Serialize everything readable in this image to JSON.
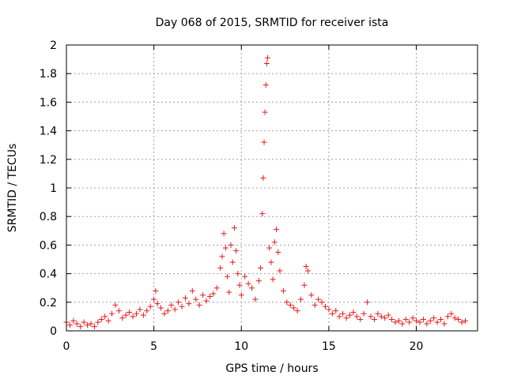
{
  "colors": {
    "series": "#e41a1c",
    "grid": "#a0a0a0",
    "axis": "#000000"
  },
  "chart_data": {
    "type": "scatter",
    "title": "Day 068 of 2015, SRMTID for receiver ista",
    "xlabel": "GPS time / hours",
    "ylabel": "SRMTID / TECUs",
    "xlim": [
      0,
      23.5
    ],
    "ylim": [
      0,
      2
    ],
    "grid": true,
    "marker": "+",
    "x_ticks": [
      0,
      5,
      10,
      15,
      20
    ],
    "x_tick_labels": [
      "0",
      "5",
      "10",
      "15",
      "20"
    ],
    "y_ticks": [
      0,
      0.2,
      0.4,
      0.6,
      0.8,
      1,
      1.2,
      1.4,
      1.6,
      1.8,
      2
    ],
    "y_tick_labels": [
      "0",
      "0.2",
      "0.4",
      "0.6",
      "0.8",
      "1",
      "1.2",
      "1.4",
      "1.6",
      "1.8",
      "2"
    ],
    "series": [
      {
        "name": "SRMTID",
        "points": [
          [
            0.0,
            0.06
          ],
          [
            0.2,
            0.04
          ],
          [
            0.4,
            0.07
          ],
          [
            0.6,
            0.05
          ],
          [
            0.8,
            0.03
          ],
          [
            1.0,
            0.06
          ],
          [
            1.2,
            0.04
          ],
          [
            1.4,
            0.05
          ],
          [
            1.6,
            0.03
          ],
          [
            1.8,
            0.06
          ],
          [
            2.0,
            0.08
          ],
          [
            2.2,
            0.1
          ],
          [
            2.4,
            0.07
          ],
          [
            2.6,
            0.12
          ],
          [
            2.8,
            0.18
          ],
          [
            3.0,
            0.14
          ],
          [
            3.2,
            0.09
          ],
          [
            3.4,
            0.11
          ],
          [
            3.6,
            0.13
          ],
          [
            3.8,
            0.1
          ],
          [
            4.0,
            0.12
          ],
          [
            4.2,
            0.15
          ],
          [
            4.4,
            0.11
          ],
          [
            4.6,
            0.14
          ],
          [
            4.8,
            0.17
          ],
          [
            5.0,
            0.22
          ],
          [
            5.1,
            0.28
          ],
          [
            5.2,
            0.19
          ],
          [
            5.4,
            0.16
          ],
          [
            5.6,
            0.12
          ],
          [
            5.8,
            0.14
          ],
          [
            6.0,
            0.18
          ],
          [
            6.2,
            0.15
          ],
          [
            6.4,
            0.2
          ],
          [
            6.6,
            0.17
          ],
          [
            6.8,
            0.23
          ],
          [
            7.0,
            0.19
          ],
          [
            7.2,
            0.28
          ],
          [
            7.4,
            0.22
          ],
          [
            7.6,
            0.18
          ],
          [
            7.8,
            0.25
          ],
          [
            8.0,
            0.21
          ],
          [
            8.2,
            0.24
          ],
          [
            8.4,
            0.26
          ],
          [
            8.6,
            0.3
          ],
          [
            8.8,
            0.44
          ],
          [
            8.9,
            0.52
          ],
          [
            9.0,
            0.68
          ],
          [
            9.1,
            0.58
          ],
          [
            9.2,
            0.38
          ],
          [
            9.3,
            0.27
          ],
          [
            9.4,
            0.6
          ],
          [
            9.5,
            0.48
          ],
          [
            9.6,
            0.72
          ],
          [
            9.7,
            0.56
          ],
          [
            9.8,
            0.4
          ],
          [
            9.9,
            0.32
          ],
          [
            10.0,
            0.25
          ],
          [
            10.2,
            0.38
          ],
          [
            10.4,
            0.33
          ],
          [
            10.6,
            0.3
          ],
          [
            10.8,
            0.22
          ],
          [
            11.0,
            0.35
          ],
          [
            11.1,
            0.44
          ],
          [
            11.2,
            0.82
          ],
          [
            11.25,
            1.07
          ],
          [
            11.3,
            1.32
          ],
          [
            11.35,
            1.53
          ],
          [
            11.4,
            1.72
          ],
          [
            11.45,
            1.87
          ],
          [
            11.5,
            1.91
          ],
          [
            11.6,
            0.58
          ],
          [
            11.7,
            0.48
          ],
          [
            11.8,
            0.36
          ],
          [
            11.9,
            0.62
          ],
          [
            12.0,
            0.71
          ],
          [
            12.1,
            0.55
          ],
          [
            12.2,
            0.42
          ],
          [
            12.4,
            0.28
          ],
          [
            12.6,
            0.2
          ],
          [
            12.8,
            0.18
          ],
          [
            13.0,
            0.16
          ],
          [
            13.2,
            0.14
          ],
          [
            13.4,
            0.22
          ],
          [
            13.6,
            0.32
          ],
          [
            13.7,
            0.45
          ],
          [
            13.8,
            0.42
          ],
          [
            14.0,
            0.25
          ],
          [
            14.2,
            0.18
          ],
          [
            14.4,
            0.22
          ],
          [
            14.6,
            0.2
          ],
          [
            14.8,
            0.17
          ],
          [
            15.0,
            0.15
          ],
          [
            15.2,
            0.12
          ],
          [
            15.4,
            0.14
          ],
          [
            15.6,
            0.1
          ],
          [
            15.8,
            0.12
          ],
          [
            16.0,
            0.09
          ],
          [
            16.2,
            0.11
          ],
          [
            16.4,
            0.13
          ],
          [
            16.6,
            0.1
          ],
          [
            16.8,
            0.08
          ],
          [
            17.0,
            0.12
          ],
          [
            17.2,
            0.2
          ],
          [
            17.4,
            0.1
          ],
          [
            17.6,
            0.08
          ],
          [
            17.8,
            0.12
          ],
          [
            18.0,
            0.1
          ],
          [
            18.2,
            0.09
          ],
          [
            18.4,
            0.11
          ],
          [
            18.6,
            0.08
          ],
          [
            18.8,
            0.06
          ],
          [
            19.0,
            0.07
          ],
          [
            19.2,
            0.05
          ],
          [
            19.4,
            0.08
          ],
          [
            19.6,
            0.06
          ],
          [
            19.8,
            0.09
          ],
          [
            20.0,
            0.07
          ],
          [
            20.2,
            0.06
          ],
          [
            20.4,
            0.08
          ],
          [
            20.6,
            0.05
          ],
          [
            20.8,
            0.07
          ],
          [
            21.0,
            0.09
          ],
          [
            21.2,
            0.06
          ],
          [
            21.4,
            0.08
          ],
          [
            21.6,
            0.05
          ],
          [
            21.8,
            0.1
          ],
          [
            22.0,
            0.12
          ],
          [
            22.2,
            0.09
          ],
          [
            22.4,
            0.08
          ],
          [
            22.6,
            0.06
          ],
          [
            22.8,
            0.07
          ]
        ]
      }
    ]
  }
}
